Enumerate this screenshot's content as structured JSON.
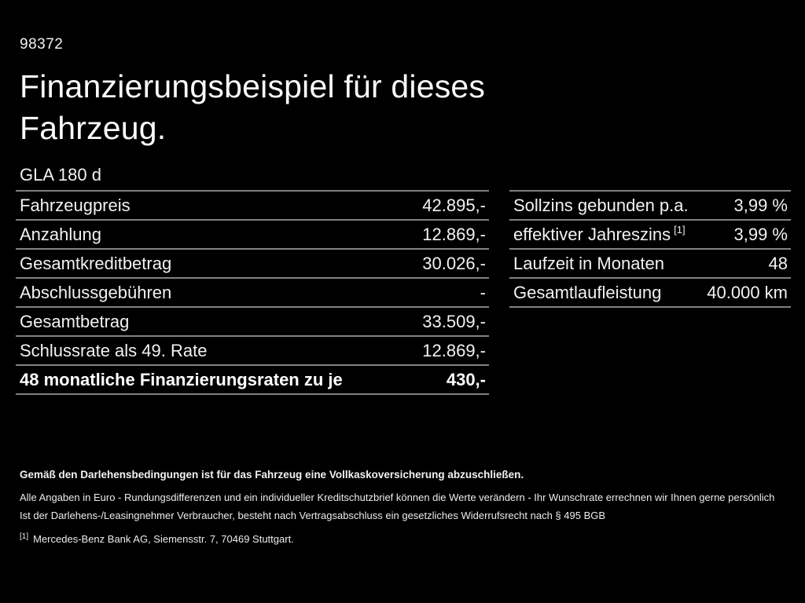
{
  "page": {
    "doc_id": "98372",
    "title_line1": "Finanzierungsbeispiel für dieses",
    "title_line2": "Fahrzeug.",
    "model": "GLA 180 d"
  },
  "colors": {
    "background": "#000000",
    "text": "#f2f2f2",
    "separator": "#828282"
  },
  "left_table": {
    "rows": [
      {
        "label": "Fahrzeugpreis",
        "value": "42.895,-"
      },
      {
        "label": "Anzahlung",
        "value": "12.869,-"
      },
      {
        "label": "Gesamtkreditbetrag",
        "value": "30.026,-"
      },
      {
        "label": "Abschlussgebühren",
        "value": "-"
      },
      {
        "label": "Gesamtbetrag",
        "value": "33.509,-"
      },
      {
        "label": "Schlussrate als 49. Rate",
        "value": "12.869,-"
      },
      {
        "label": "48 monatliche Finanzierungsraten zu je",
        "value": "430,-"
      }
    ]
  },
  "right_table": {
    "rows": [
      {
        "label": "Sollzins gebunden p.a.",
        "value": "3,99 %"
      },
      {
        "label": "effektiver Jahreszins",
        "sup": "[1]",
        "value": "3,99 %"
      },
      {
        "label": "Laufzeit in Monaten",
        "value": "48"
      },
      {
        "label": "Gesamtlaufleistung",
        "value": "40.000 km"
      }
    ]
  },
  "footer": {
    "line1": "Gemäß den Darlehensbedingungen ist für das Fahrzeug eine Vollkaskoversicherung abzuschließen.",
    "line2": "Alle Angaben in Euro - Rundungsdifferenzen und ein individueller Kreditschutzbrief können die Werte verändern - Ihr Wunschrate errechnen wir Ihnen gerne persönlich",
    "line3": "Ist der Darlehens-/Leasingnehmer Verbraucher, besteht nach Vertragsabschluss ein gesetzliches Widerrufsrecht nach § 495 BGB",
    "footnote_marker": "[1]",
    "footnote_text": "Mercedes-Benz Bank AG, Siemensstr. 7, 70469 Stuttgart."
  }
}
